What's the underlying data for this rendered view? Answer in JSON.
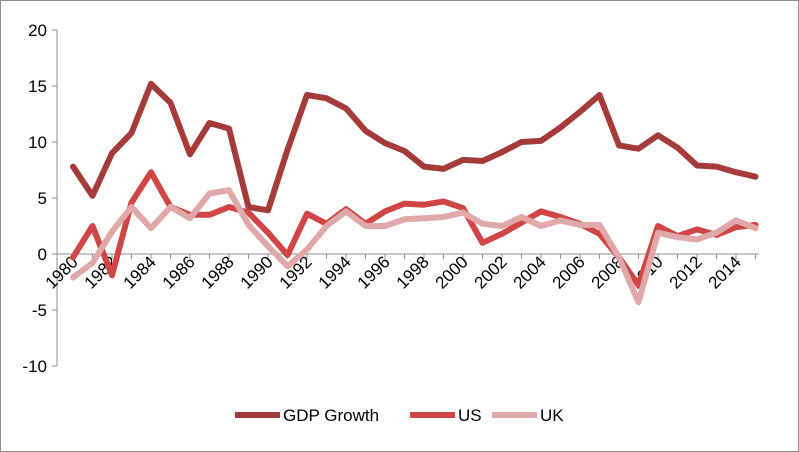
{
  "chart_data": {
    "type": "line",
    "title": "",
    "xlabel": "",
    "ylabel": "",
    "ylim": [
      -10,
      20
    ],
    "y_ticks": [
      "20",
      "15",
      "10",
      "5",
      "0",
      "-5",
      "-10"
    ],
    "y_tick_values": [
      20,
      15,
      10,
      5,
      0,
      -5,
      -10
    ],
    "x": [
      1980,
      1981,
      1982,
      1983,
      1984,
      1985,
      1986,
      1987,
      1988,
      1989,
      1990,
      1991,
      1992,
      1993,
      1994,
      1995,
      1996,
      1997,
      1998,
      1999,
      2000,
      2001,
      2002,
      2003,
      2004,
      2005,
      2006,
      2007,
      2008,
      2009,
      2010,
      2011,
      2012,
      2013,
      2014,
      2015
    ],
    "x_tick_labels": [
      "1980",
      "1982",
      "1984",
      "1986",
      "1988",
      "1990",
      "1992",
      "1994",
      "1996",
      "1998",
      "2000",
      "2002",
      "2004",
      "2006",
      "2008",
      "2010",
      "2012",
      "2014"
    ],
    "grid": false,
    "legend_position": "bottom",
    "series": [
      {
        "name": "GDP Growth",
        "color": "#a43a3a",
        "values": [
          7.8,
          5.2,
          9.0,
          10.8,
          15.2,
          13.5,
          8.9,
          11.7,
          11.2,
          4.2,
          3.9,
          9.3,
          14.2,
          13.9,
          13.0,
          11.0,
          9.9,
          9.2,
          7.8,
          7.6,
          8.4,
          8.3,
          9.1,
          10.0,
          10.1,
          11.3,
          12.7,
          14.2,
          9.7,
          9.4,
          10.6,
          9.5,
          7.9,
          7.8,
          7.3,
          6.9
        ]
      },
      {
        "name": "US",
        "color": "#d04545",
        "values": [
          -0.3,
          2.5,
          -1.9,
          4.6,
          7.3,
          4.2,
          3.5,
          3.5,
          4.2,
          3.7,
          1.9,
          -0.1,
          3.6,
          2.7,
          4.0,
          2.7,
          3.8,
          4.5,
          4.4,
          4.7,
          4.1,
          1.0,
          1.8,
          2.8,
          3.8,
          3.3,
          2.7,
          1.8,
          -0.3,
          -2.8,
          2.5,
          1.6,
          2.2,
          1.7,
          2.4,
          2.6
        ]
      },
      {
        "name": "UK",
        "color": "#e0a8a8",
        "values": [
          -2.1,
          -0.8,
          2.0,
          4.2,
          2.3,
          4.2,
          3.2,
          5.4,
          5.7,
          2.6,
          0.7,
          -1.1,
          0.4,
          2.5,
          3.8,
          2.5,
          2.5,
          3.1,
          3.2,
          3.3,
          3.7,
          2.7,
          2.5,
          3.3,
          2.5,
          3.0,
          2.6,
          2.6,
          -0.3,
          -4.3,
          1.9,
          1.5,
          1.3,
          1.9,
          3.0,
          2.3
        ]
      }
    ]
  }
}
